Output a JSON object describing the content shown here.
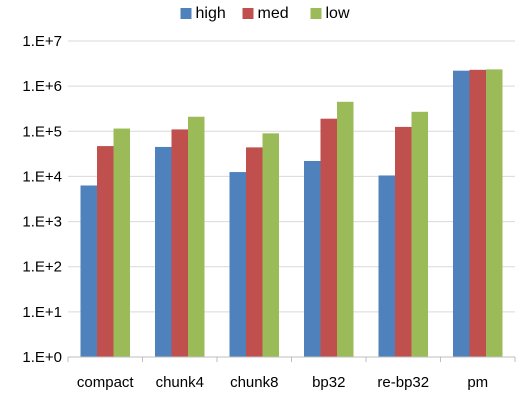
{
  "chart_data": {
    "type": "bar",
    "scale": "log10",
    "categories": [
      "compact",
      "chunk4",
      "chunk8",
      "bp32",
      "re-bp32",
      "pm"
    ],
    "series": [
      {
        "name": "high",
        "color": "#4f81bd",
        "values": [
          6300,
          45000,
          12500,
          22000,
          10500,
          2200000
        ]
      },
      {
        "name": "med",
        "color": "#c0504d",
        "values": [
          47000,
          110000,
          44000,
          190000,
          125000,
          2300000
        ]
      },
      {
        "name": "low",
        "color": "#9bbb59",
        "values": [
          115000,
          210000,
          90000,
          450000,
          270000,
          2350000
        ]
      }
    ],
    "ylim": [
      1,
      10000000
    ],
    "yticks": [
      "1.E+0",
      "1.E+1",
      "1.E+2",
      "1.E+3",
      "1.E+4",
      "1.E+5",
      "1.E+6",
      "1.E+7"
    ],
    "grid": true,
    "legend_position": "top-center",
    "title": "",
    "xlabel": "",
    "ylabel": ""
  }
}
